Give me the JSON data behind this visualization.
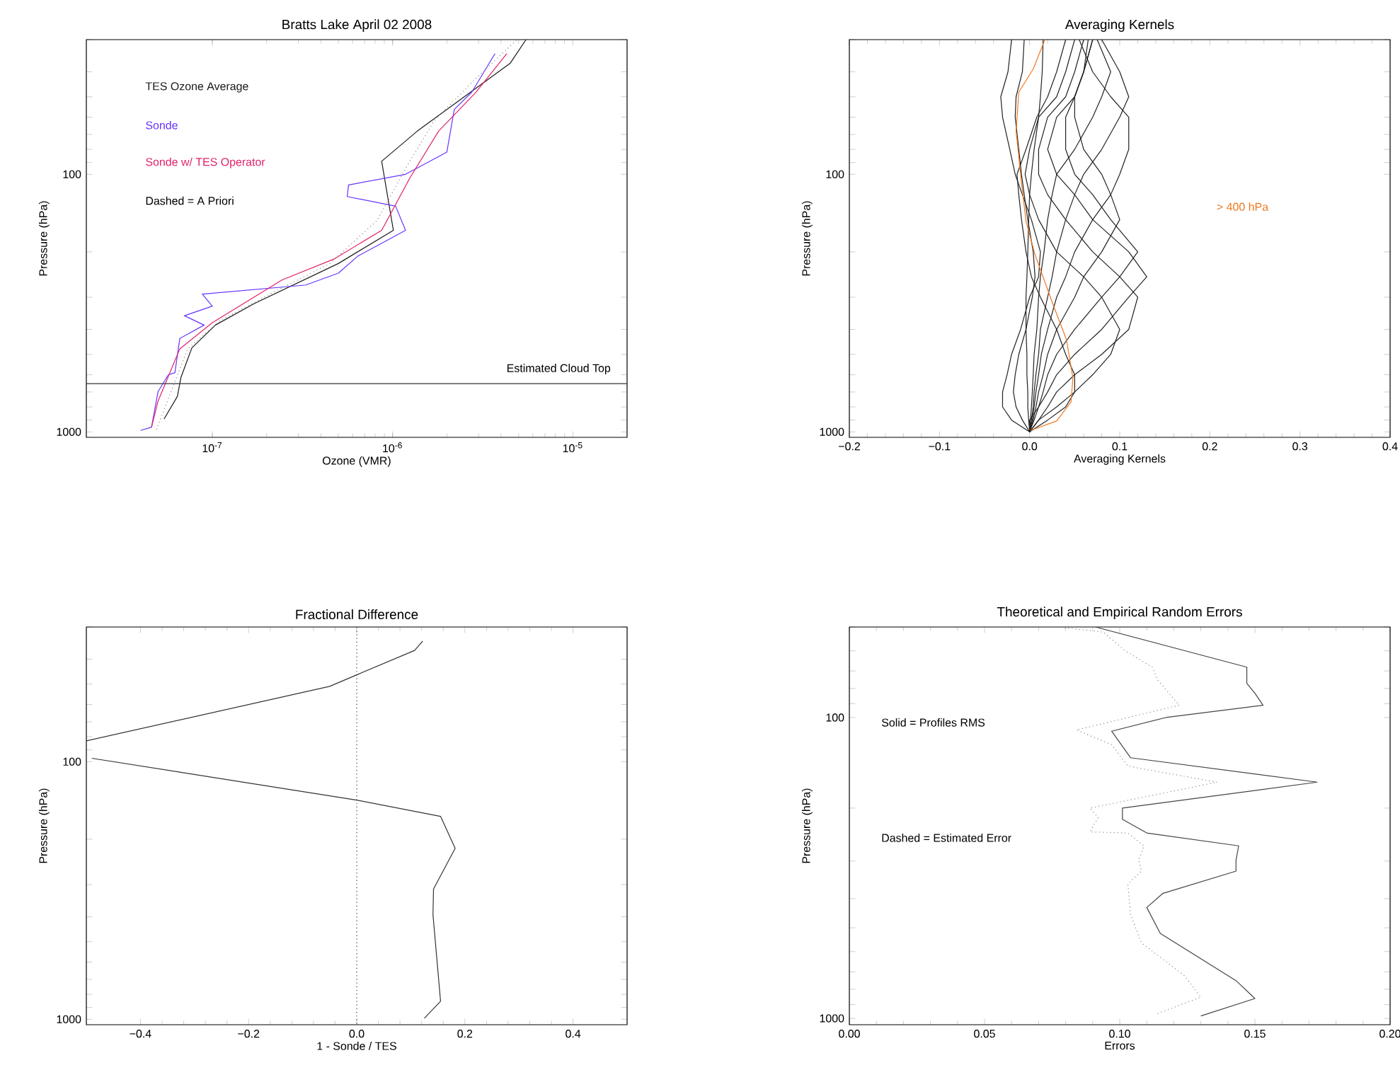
{
  "chart_data": [
    {
      "type": "line",
      "title": "Bratts Lake April 02 2008",
      "xlabel": "Ozone (VMR)",
      "ylabel": "Pressure (hPa)",
      "log": "xy",
      "legend": "top left",
      "xlim": [
        2e-08,
        2e-05
      ],
      "ylim": [
        1050,
        30
      ],
      "xticks": [
        {
          "value": 1e-07,
          "label": "10$^{-7}$"
        },
        {
          "value": 1e-06,
          "label": "10$^{-6}$"
        },
        {
          "value": 1e-05,
          "label": "10$^{-5}$"
        }
      ],
      "yticks": [
        {
          "value": 30,
          "label": null
        },
        {
          "value": 40,
          "label": null
        },
        {
          "value": 50,
          "label": null
        },
        {
          "value": 60,
          "label": null
        },
        {
          "value": 70,
          "label": null
        },
        {
          "value": 80,
          "label": null
        },
        {
          "value": 90,
          "label": null
        },
        100,
        {
          "value": 200,
          "label": null
        },
        {
          "value": 300,
          "label": null
        },
        {
          "value": 400,
          "label": null
        },
        {
          "value": 500,
          "label": null
        },
        {
          "value": 600,
          "label": null
        },
        {
          "value": 700,
          "label": null
        },
        {
          "value": 800,
          "label": null
        },
        {
          "value": 900,
          "label": null
        },
        1000
      ],
      "series": [
        {
          "name": "TES Ozone Average",
          "color": "#1a1a1a",
          "x": [
            5.4e-08,
            6.4e-08,
            6.7e-08,
            7.7e-08,
            1.04e-07,
            1.7e-07,
            5e-07,
            1.01e-06,
            8.7e-07,
            1.37e-06,
            4.5e-06,
            5.5e-06
          ],
          "values": [
            891,
            728,
            614,
            472,
            385,
            318,
            222,
            165,
            89,
            68,
            37,
            30
          ]
        },
        {
          "name": "Sonde",
          "color": "#6633ff",
          "x": [
            4e-08,
            4.6e-08,
            5e-08,
            5.7e-08,
            6.2e-08,
            6.6e-08,
            9e-08,
            7e-08,
            1e-07,
            8.8e-08,
            3.3e-07,
            5e-07,
            6.4e-07,
            1.18e-06,
            1.04e-06,
            5.6e-07,
            5.7e-07,
            1.18e-06,
            2e-06,
            2.2e-06,
            2.75e-06,
            3.7e-06
          ],
          "values": [
            987,
            959,
            697,
            601,
            589,
            434,
            385,
            354,
            325,
            292,
            269,
            242,
            208,
            165,
            133,
            122,
            110,
            100,
            82,
            56,
            48,
            34
          ]
        },
        {
          "name": "Sonde w/ TES Operator",
          "color": "#e0206a",
          "x": [
            4.6e-08,
            5e-08,
            6.6e-08,
            1e-07,
            2.44e-07,
            4.75e-07,
            8.7e-07,
            1.25e-06,
            1.8e-06,
            2.9e-06,
            4.3e-06
          ],
          "values": [
            959,
            759,
            476,
            377,
            257,
            213,
            165,
            103,
            68,
            48,
            34
          ]
        },
        {
          "color": "#888888",
          "line_style": "dotted",
          "x": [
            4.9e-08,
            5.5e-08,
            7.3e-08,
            1.11e-07,
            2.44e-07,
            4.5e-07,
            8.2e-07,
            1.18e-06,
            1.7e-06,
            2.75e-06,
            4.9e-06
          ],
          "values": [
            979,
            792,
            476,
            369,
            276,
            222,
            151,
            95,
            62,
            44,
            30
          ]
        }
      ],
      "annotations": [
        "Dashed = A Priori"
      ],
      "ref_lines": [
        {
          "axis": "y",
          "value": 650,
          "label": "Estimated Cloud Top",
          "color": "#333333"
        }
      ]
    },
    {
      "type": "line",
      "title": "Averaging Kernels",
      "xlabel": "Averaging Kernels",
      "ylabel": "Pressure (hPa)",
      "log": "y",
      "legend": "right",
      "xlim": [
        -0.2,
        0.4
      ],
      "ylim": [
        1050,
        30
      ],
      "xticks": [
        {
          "value": -0.2,
          "label": "−0.2"
        },
        {
          "value": -0.1,
          "label": "−0.1"
        },
        {
          "value": 0,
          "label": "0.0"
        },
        {
          "value": 0.1,
          "label": "0.1"
        },
        {
          "value": 0.2,
          "label": "0.2"
        },
        {
          "value": 0.3,
          "label": "0.3"
        },
        {
          "value": 0.4,
          "label": "0.4"
        }
      ],
      "yticks": [
        {
          "value": 30,
          "label": null
        },
        {
          "value": 40,
          "label": null
        },
        {
          "value": 50,
          "label": null
        },
        {
          "value": 60,
          "label": null
        },
        {
          "value": 70,
          "label": null
        },
        {
          "value": 80,
          "label": null
        },
        {
          "value": 90,
          "label": null
        },
        100,
        {
          "value": 200,
          "label": null
        },
        {
          "value": 300,
          "label": null
        },
        {
          "value": 400,
          "label": null
        },
        {
          "value": 500,
          "label": null
        },
        {
          "value": 600,
          "label": null
        },
        {
          "value": 700,
          "label": null
        },
        {
          "value": 800,
          "label": null
        },
        {
          "value": 900,
          "label": null
        },
        1000
      ],
      "series": [
        {
          "color": "#222222",
          "x": [
            0,
            -0.02,
            -0.03,
            -0.03,
            -0.025,
            -0.02,
            -0.01,
            0,
            0.01,
            0.012,
            0.002,
            -0.008,
            -0.016,
            -0.022,
            -0.03,
            -0.032,
            -0.024,
            -0.02
          ],
          "values": [
            1000,
            900,
            800,
            700,
            600,
            500,
            400,
            300,
            250,
            200,
            150,
            120,
            100,
            80,
            60,
            50,
            40,
            30
          ]
        },
        {
          "color": "#222222",
          "x": [
            0,
            -0.008,
            -0.015,
            -0.018,
            -0.016,
            -0.012,
            -0.004,
            0.003,
            0.006,
            0.004,
            -0.002,
            -0.006,
            -0.009,
            -0.012,
            -0.016,
            -0.015,
            -0.008,
            -0.006
          ],
          "values": [
            1000,
            900,
            800,
            700,
            600,
            500,
            400,
            300,
            250,
            200,
            150,
            120,
            100,
            80,
            60,
            50,
            40,
            30
          ]
        },
        {
          "color": "#222222",
          "x": [
            0,
            0.02,
            0.04,
            0.05,
            0.05,
            0.04,
            0.03,
            0.012,
            0.002,
            -0.004,
            -0.009,
            -0.012,
            -0.014,
            -0.004,
            0.008,
            0.02,
            0.03,
            0.04
          ],
          "values": [
            1000,
            900,
            800,
            700,
            600,
            500,
            400,
            300,
            250,
            200,
            150,
            120,
            100,
            80,
            60,
            50,
            40,
            30
          ]
        },
        {
          "color": "#222222",
          "x": [
            0,
            0.01,
            0.03,
            0.05,
            0.07,
            0.09,
            0.1,
            0.08,
            0.06,
            0.03,
            0.01,
            0,
            -0.005,
            0,
            0.01,
            0.03,
            0.04,
            0.05
          ],
          "values": [
            1000,
            900,
            800,
            700,
            600,
            500,
            400,
            300,
            250,
            200,
            150,
            120,
            100,
            80,
            60,
            50,
            40,
            30
          ]
        },
        {
          "color": "#222222",
          "x": [
            0,
            0.01,
            0.02,
            0.03,
            0.05,
            0.08,
            0.11,
            0.12,
            0.1,
            0.07,
            0.04,
            0.02,
            0.01,
            0.01,
            0.02,
            0.04,
            0.05,
            0.06
          ],
          "values": [
            1000,
            900,
            800,
            700,
            600,
            500,
            400,
            300,
            250,
            200,
            150,
            120,
            100,
            80,
            60,
            50,
            40,
            30
          ]
        },
        {
          "color": "#222222",
          "x": [
            0,
            0,
            0.01,
            0.02,
            0.03,
            0.05,
            0.08,
            0.11,
            0.13,
            0.11,
            0.07,
            0.05,
            0.03,
            0.02,
            0.03,
            0.05,
            0.06,
            0.07
          ],
          "values": [
            1000,
            900,
            800,
            700,
            600,
            500,
            400,
            300,
            250,
            200,
            150,
            120,
            100,
            80,
            60,
            50,
            40,
            30
          ]
        },
        {
          "color": "#222222",
          "x": [
            0,
            0.005,
            0.01,
            0.015,
            0.02,
            0.03,
            0.05,
            0.08,
            0.1,
            0.12,
            0.09,
            0.07,
            0.05,
            0.04,
            0.04,
            0.05,
            0.06,
            0.07
          ],
          "values": [
            1000,
            900,
            800,
            700,
            600,
            500,
            400,
            300,
            250,
            200,
            150,
            120,
            100,
            80,
            60,
            50,
            40,
            30
          ]
        },
        {
          "color": "#222222",
          "x": [
            0,
            0.004,
            0.007,
            0.01,
            0.015,
            0.02,
            0.03,
            0.05,
            0.06,
            0.08,
            0.1,
            0.09,
            0.08,
            0.06,
            0.05,
            0.05,
            0.06,
            0.065
          ],
          "values": [
            1000,
            900,
            800,
            700,
            600,
            500,
            400,
            300,
            250,
            200,
            150,
            120,
            100,
            80,
            60,
            50,
            40,
            30
          ]
        },
        {
          "color": "#222222",
          "x": [
            0,
            0.003,
            0.005,
            0.007,
            0.01,
            0.013,
            0.02,
            0.03,
            0.04,
            0.05,
            0.07,
            0.09,
            0.1,
            0.11,
            0.11,
            0.09,
            0.07,
            0.055
          ],
          "values": [
            1000,
            900,
            800,
            700,
            600,
            500,
            400,
            300,
            250,
            200,
            150,
            120,
            100,
            80,
            60,
            50,
            40,
            30
          ]
        },
        {
          "color": "#222222",
          "x": [
            0,
            0.002,
            0.004,
            0.005,
            0.007,
            0.01,
            0.012,
            0.02,
            0.025,
            0.03,
            0.04,
            0.05,
            0.06,
            0.08,
            0.1,
            0.11,
            0.1,
            0.08
          ],
          "values": [
            1000,
            900,
            800,
            700,
            600,
            500,
            400,
            300,
            250,
            200,
            150,
            120,
            100,
            80,
            60,
            50,
            40,
            30
          ]
        },
        {
          "color": "#222222",
          "x": [
            0,
            0.001,
            0.002,
            0.003,
            0.004,
            0.005,
            0.008,
            0.01,
            0.012,
            0.016,
            0.02,
            0.025,
            0.03,
            0.05,
            0.07,
            0.08,
            0.09,
            0.075
          ],
          "values": [
            1000,
            900,
            800,
            700,
            600,
            500,
            400,
            300,
            250,
            200,
            150,
            120,
            100,
            80,
            60,
            50,
            40,
            30
          ]
        },
        {
          "color": "#222222",
          "x": [
            0,
            -0.001,
            -0.002,
            -0.002,
            -0.003,
            -0.003,
            -0.004,
            -0.004,
            -0.003,
            -0.002,
            -0.001,
            0,
            0.002,
            0.005,
            0.01,
            0.012,
            0.014,
            0.015
          ],
          "values": [
            1000,
            900,
            800,
            700,
            600,
            500,
            400,
            300,
            250,
            200,
            150,
            120,
            100,
            80,
            60,
            50,
            40,
            30
          ]
        },
        {
          "name": "> 400 hPa",
          "color": "#f07820",
          "x": [
            0.001,
            0.03,
            0.046,
            0.048,
            0.041,
            0.025,
            0.006,
            -0.004,
            -0.009,
            -0.015,
            -0.012,
            0.004,
            0.017
          ],
          "values": [
            987,
            907,
            765,
            618,
            440,
            313,
            205,
            152,
            108,
            68,
            48,
            39,
            30
          ]
        }
      ]
    },
    {
      "type": "line",
      "title": "Fractional Difference",
      "xlabel": "1 - Sonde / TES",
      "ylabel": "Pressure (hPa)",
      "log": "y",
      "xlim": [
        -0.5,
        0.5
      ],
      "ylim": [
        1050,
        30
      ],
      "xticks": [
        {
          "value": -0.4,
          "label": "−0.4"
        },
        {
          "value": -0.2,
          "label": "−0.2"
        },
        {
          "value": 0,
          "label": "0.0"
        },
        {
          "value": 0.2,
          "label": "0.2"
        },
        {
          "value": 0.4,
          "label": "0.4"
        }
      ],
      "yticks": [
        {
          "value": 30,
          "label": null
        },
        {
          "value": 40,
          "label": null
        },
        {
          "value": 50,
          "label": null
        },
        {
          "value": 60,
          "label": null
        },
        {
          "value": 70,
          "label": null
        },
        {
          "value": 80,
          "label": null
        },
        {
          "value": 90,
          "label": null
        },
        100,
        {
          "value": 200,
          "label": null
        },
        {
          "value": 300,
          "label": null
        },
        {
          "value": 400,
          "label": null
        },
        {
          "value": 500,
          "label": null
        },
        {
          "value": 600,
          "label": null
        },
        {
          "value": 700,
          "label": null
        },
        {
          "value": 800,
          "label": null
        },
        {
          "value": 900,
          "label": null
        },
        1000
      ],
      "series": [
        {
          "color": "#333333",
          "x": [
            0.125,
            0.155,
            0.141,
            0.142,
            0.182,
            0.155,
            0,
            -0.49,
            null,
            -0.5,
            -0.05,
            0,
            0.107,
            0.122
          ],
          "values": [
            991,
            851,
            393,
            312,
            217,
            163,
            141,
            97,
            null,
            83,
            51,
            46,
            37,
            34
          ]
        }
      ],
      "ref_lines": [
        {
          "axis": "x",
          "value": 0,
          "line_style": "dotted",
          "color": "#333333"
        }
      ]
    },
    {
      "type": "line",
      "title": "Theoretical and Empirical Random Errors",
      "xlabel": "Errors",
      "ylabel": "Pressure (hPa)",
      "log": "y",
      "xlim": [
        0,
        0.2
      ],
      "ylim": [
        1050,
        50
      ],
      "xticks": [
        {
          "value": 0,
          "label": "0.00"
        },
        {
          "value": 0.05,
          "label": "0.05"
        },
        {
          "value": 0.1,
          "label": "0.10"
        },
        {
          "value": 0.15,
          "label": "0.15"
        },
        {
          "value": 0.2,
          "label": "0.20"
        }
      ],
      "yticks": [
        {
          "value": 50,
          "label": null
        },
        {
          "value": 60,
          "label": null
        },
        {
          "value": 70,
          "label": null
        },
        {
          "value": 80,
          "label": null
        },
        {
          "value": 90,
          "label": null
        },
        100,
        {
          "value": 200,
          "label": null
        },
        {
          "value": 300,
          "label": null
        },
        {
          "value": 400,
          "label": null
        },
        {
          "value": 500,
          "label": null
        },
        {
          "value": 600,
          "label": null
        },
        {
          "value": 700,
          "label": null
        },
        {
          "value": 800,
          "label": null
        },
        {
          "value": 900,
          "label": null
        },
        1000
      ],
      "series": [
        {
          "color": "#444444",
          "x": [
            0.13,
            0.15,
            0.143,
            0.115,
            0.11,
            0.116,
            0.143,
            0.143,
            0.144,
            0.11,
            0.101,
            0.101,
            0.173,
            0.104,
            0.097,
            0.117,
            0.153,
            0.15,
            0.147,
            0.147,
            0.091
          ],
          "values": [
            982,
            859,
            749,
            522,
            428,
            384,
            324,
            298,
            267,
            242,
            218,
            200,
            164,
            136,
            111,
            100,
            91,
            83,
            77,
            68,
            50
          ]
        },
        {
          "color": "#888888",
          "line_style": "dotted",
          "x": [
            0.114,
            0.13,
            0.124,
            0.108,
            0.104,
            0.103,
            0.108,
            0.107,
            0.109,
            0.103,
            0.089,
            0.092,
            0.089,
            0.136,
            0.103,
            0.097,
            0.084,
            0.122,
            0.114,
            0.112,
            0.102,
            0.094,
            0.077
          ],
          "values": [
            964,
            850,
            722,
            561,
            451,
            357,
            324,
            298,
            267,
            242,
            240,
            215,
            200,
            164,
            145,
            123,
            110,
            91,
            75,
            68,
            60,
            52,
            50
          ]
        }
      ],
      "annotations": [
        "Solid = Profiles RMS",
        "Dashed = Estimated Error"
      ]
    }
  ]
}
